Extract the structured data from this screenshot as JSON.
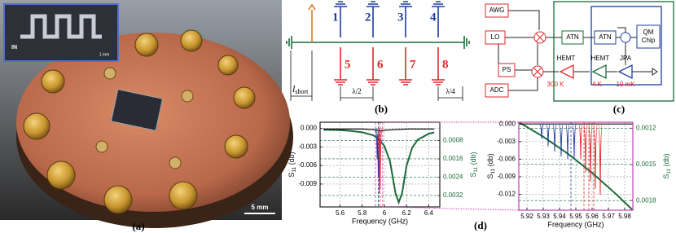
{
  "photo": {
    "label": "(a)",
    "inset_port": "IN",
    "inset_scale": "1 mm",
    "scale": "5 mm"
  },
  "circuit": {
    "label": "(b)",
    "numbers": [
      "1",
      "2",
      "3",
      "4",
      "5",
      "6",
      "7",
      "8"
    ],
    "l": "l",
    "l_sub": "short",
    "half": "λ/2",
    "quarter": "λ/4"
  },
  "setup": {
    "label": "(c)",
    "awg": "AWG",
    "lo": "LO",
    "ps": "PS",
    "adc": "ADC",
    "atn1": "ATN",
    "atn2": "ATN",
    "qm": "QM",
    "chip": "Chip",
    "hemt1": "HEMT",
    "hemt2": "HEMT",
    "jpa": "JPA",
    "t1": "300 K",
    "t2": "4 K",
    "t3": "10 mK"
  },
  "panel_d_label": "(d)",
  "chart_data": [
    {
      "type": "line",
      "xlabel": "Frequency (GHz)",
      "ylabel": {
        "main": "S",
        "sub": "11",
        "unit": " (db)"
      },
      "y2label": {
        "main": "S",
        "sub": "11",
        "unit": " (db)"
      },
      "xlim": [
        5.42,
        6.5
      ],
      "xticks": [
        5.6,
        5.8,
        6.0,
        6.2,
        6.4
      ],
      "ylim": [
        -0.0127,
        0.001
      ],
      "yticks": [
        {
          "value": 0,
          "label": "0.000"
        },
        -0.003,
        -0.006,
        -0.009
      ],
      "y2lim": [
        0.0037,
        0
      ],
      "y2ticks": [
        0.0008,
        0.0016,
        0.0024,
        0.0032
      ],
      "grid": true,
      "frame_color": "#222222",
      "vlines": [
        {
          "x": 5.945,
          "color": "#1f3c9a"
        },
        {
          "x": 5.96,
          "color": "#e0262a"
        },
        {
          "x": 5.92,
          "color": "#c040b0"
        },
        {
          "x": 5.985,
          "color": "#c040b0"
        }
      ],
      "series": [
        {
          "style": "line",
          "color": "#1a6b3a",
          "axis": "y2",
          "x": [
            5.45,
            5.6,
            5.7,
            5.8,
            5.9,
            5.95,
            6.0,
            6.05,
            6.1,
            6.13,
            6.16,
            6.2,
            6.25,
            6.3,
            6.4,
            6.45
          ],
          "values": [
            0.00033,
            0.00035,
            0.00038,
            0.00044,
            0.00057,
            0.00073,
            0.00104,
            0.0017,
            0.0031,
            0.0035,
            0.0031,
            0.0019,
            0.00112,
            0.00077,
            0.0005,
            0.00045
          ]
        },
        {
          "style": "line",
          "color": "#111111",
          "x": [
            5.45,
            5.6,
            5.8,
            5.9,
            5.97,
            6.0,
            6.1,
            6.2,
            6.3,
            6.45
          ],
          "values": [
            -0.0001,
            -0.0001,
            -0.0001,
            -0.0002,
            -0.0004,
            -0.0003,
            -0.0002,
            -0.0001,
            -0.0001,
            -0.0001
          ]
        },
        {
          "style": "dip",
          "color": "#1f3c9a",
          "x": [
            5.935,
            5.945
          ],
          "values": [
            -0.005,
            -0.008
          ]
        },
        {
          "style": "dip",
          "color": "#e0262a",
          "x": [
            5.955,
            5.962
          ],
          "values": [
            -0.0105,
            -0.0098
          ]
        }
      ]
    },
    {
      "type": "line",
      "xlabel": "Frequency (GHz)",
      "ylabel": {
        "main": "S",
        "sub": "11",
        "unit": " (db)"
      },
      "y2label": {
        "main": "S",
        "sub": "11",
        "unit": " (db)"
      },
      "xlim": [
        5.915,
        5.985
      ],
      "xticks": [
        5.92,
        5.93,
        5.94,
        5.95,
        5.96,
        5.97,
        5.98
      ],
      "ylim": [
        -0.0147,
        0.0003
      ],
      "yticks": [
        {
          "value": 0,
          "label": "0.000"
        },
        -0.003,
        -0.006,
        -0.009,
        -0.012
      ],
      "y2lim": [
        0.00188,
        0.00115
      ],
      "y2ticks": [
        0.0012,
        0.0015,
        0.0018
      ],
      "grid": true,
      "frame_color": "#c040b0",
      "vlines": [
        {
          "x": 5.947,
          "color": "#1f3c9a"
        },
        {
          "x": 5.955,
          "color": "#e0262a"
        },
        {
          "x": 5.958,
          "color": "#e0262a"
        },
        {
          "x": 5.961,
          "color": "#e0262a"
        }
      ],
      "series": [
        {
          "style": "line",
          "color": "#1a6b3a",
          "axis": "y2",
          "x": [
            5.915,
            5.93,
            5.945,
            5.96,
            5.975,
            5.985
          ],
          "values": [
            0.00115,
            0.00127,
            0.00141,
            0.00157,
            0.00175,
            0.00188
          ]
        },
        {
          "style": "line",
          "color": "#111111",
          "x": [
            5.915,
            5.927,
            5.968,
            5.985
          ],
          "values": [
            0,
            0,
            0,
            0
          ]
        },
        {
          "style": "dip",
          "color": "#1f3c9a",
          "x": [
            5.929,
            5.933,
            5.937,
            5.941,
            5.945,
            5.949
          ],
          "values": [
            -0.0025,
            -0.0038,
            -0.0047,
            -0.0055,
            -0.006,
            -0.0058
          ]
        },
        {
          "style": "dip",
          "color": "#e0262a",
          "x": [
            5.953,
            5.956,
            5.959,
            5.962,
            5.965
          ],
          "values": [
            -0.006,
            -0.0082,
            -0.0098,
            -0.011,
            -0.0121
          ]
        }
      ]
    }
  ]
}
